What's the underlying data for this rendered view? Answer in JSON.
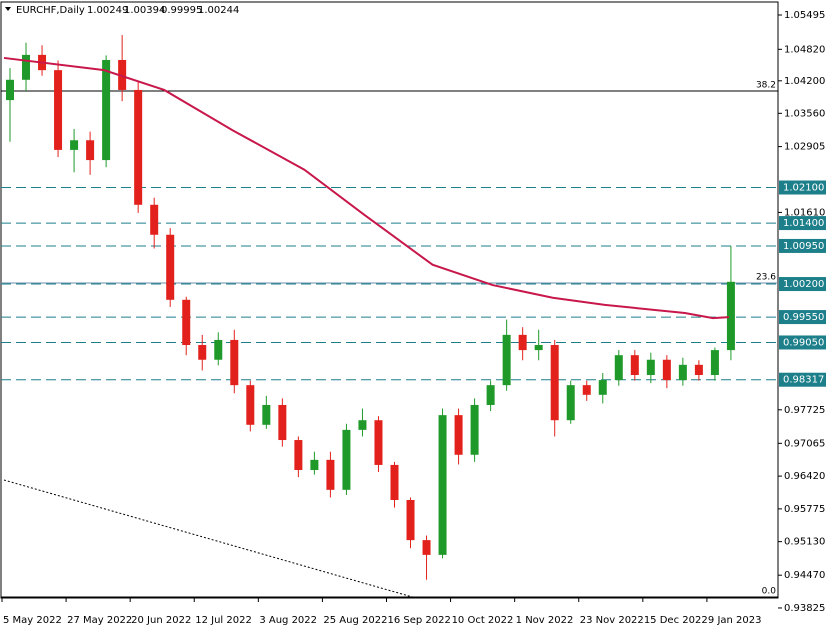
{
  "chart_data": {
    "type": "candlestick",
    "symbol": "EURCHF,Daily",
    "quote": [
      1.00249,
      1.00394,
      0.99995,
      1.00244
    ],
    "xlim": [
      0,
      194
    ],
    "ylim": [
      0.94021,
      1.05751
    ],
    "yticks": [
      1.05495,
      {
        "value": 1.0482,
        "label": "1.04820"
      },
      {
        "value": 1.042,
        "label": "1.04200"
      },
      {
        "value": 1.0356,
        "label": "1.03560"
      },
      1.02905,
      {
        "value": 1.0161,
        "label": "1.01610"
      },
      0.97725,
      0.97065,
      {
        "value": 0.9642,
        "label": "0.96420"
      },
      0.95775,
      {
        "value": 0.9513,
        "label": "0.95130"
      },
      {
        "value": 0.9447,
        "label": "0.94470"
      },
      0.93825
    ],
    "xticks": [
      {
        "value": 0,
        "label": "5 May 2022"
      },
      {
        "value": 16,
        "label": "27 May 2022"
      },
      {
        "value": 32,
        "label": "20 Jun 2022"
      },
      {
        "value": 48,
        "label": "12 Jul 2022"
      },
      {
        "value": 64,
        "label": "3 Aug 2022"
      },
      {
        "value": 80,
        "label": "25 Aug 2022"
      },
      {
        "value": 96,
        "label": "16 Sep 2022"
      },
      {
        "value": 112,
        "label": "10 Oct 2022"
      },
      {
        "value": 128,
        "label": "1 Nov 2022"
      },
      {
        "value": 144,
        "label": "23 Nov 2022"
      },
      {
        "value": 160,
        "label": "15 Dec 2022"
      },
      {
        "value": 176,
        "label": "9 Jan 2023"
      }
    ],
    "up_color": "#1f9a2a",
    "down_color": "#e3211c",
    "x": [
      0,
      4,
      8,
      12,
      16,
      20,
      24,
      28,
      32,
      36,
      40,
      44,
      48,
      52,
      56,
      60,
      64,
      68,
      72,
      76,
      80,
      84,
      88,
      92,
      96,
      100,
      104,
      108,
      112,
      116,
      120,
      124,
      128,
      132,
      136,
      140,
      144,
      148,
      152,
      156,
      160,
      164,
      168,
      172,
      176,
      180
    ],
    "open": [
      1.0382,
      1.0422,
      1.0471,
      1.0441,
      1.0284,
      1.0303,
      1.0264,
      1.0461,
      1.0402,
      1.0176,
      1.0117,
      0.9989,
      0.99,
      0.9871,
      0.991,
      0.9821,
      0.9743,
      0.9782,
      0.9713,
      0.9654,
      0.9674,
      0.9615,
      0.9733,
      0.9752,
      0.9664,
      0.9595,
      0.9516,
      0.9487,
      0.9762,
      0.9684,
      0.9782,
      0.9821,
      0.992,
      0.989,
      0.99,
      0.9752,
      0.9821,
      0.9802,
      0.9831,
      0.988,
      0.9841,
      0.9871,
      0.9831,
      0.9861,
      0.9841,
      0.989
    ],
    "high": [
      1.0445,
      1.0495,
      1.049,
      1.046,
      1.0325,
      1.032,
      1.047,
      1.051,
      1.042,
      1.019,
      1.013,
      0.9995,
      0.992,
      0.9925,
      0.993,
      0.983,
      0.98,
      0.9795,
      0.972,
      0.969,
      0.969,
      0.9745,
      0.9775,
      0.976,
      0.967,
      0.96,
      0.9525,
      0.9775,
      0.9775,
      0.9795,
      0.983,
      0.995,
      0.9935,
      0.993,
      0.991,
      0.983,
      0.983,
      0.9845,
      0.989,
      0.989,
      0.9885,
      0.988,
      0.9875,
      0.987,
      0.9895,
      1.0095
    ],
    "low": [
      1.03,
      1.04,
      1.043,
      1.027,
      1.024,
      1.0235,
      1.025,
      1.038,
      1.016,
      1.009,
      0.9975,
      0.988,
      0.985,
      0.986,
      0.9805,
      0.973,
      0.9735,
      0.97,
      0.964,
      0.9645,
      0.96,
      0.9605,
      0.972,
      0.965,
      0.958,
      0.95,
      0.9438,
      0.948,
      0.9665,
      0.967,
      0.977,
      0.981,
      0.987,
      0.987,
      0.972,
      0.9745,
      0.979,
      0.9785,
      0.982,
      0.983,
      0.9825,
      0.9815,
      0.982,
      0.983,
      0.983,
      0.987
    ],
    "close": [
      1.0422,
      1.0471,
      1.0441,
      1.0284,
      1.0303,
      1.0264,
      1.0461,
      1.0402,
      1.0176,
      1.0117,
      0.9989,
      0.99,
      0.9871,
      0.991,
      0.9821,
      0.9743,
      0.9782,
      0.9713,
      0.9654,
      0.9674,
      0.9615,
      0.9733,
      0.9752,
      0.9664,
      0.9595,
      0.9516,
      0.9487,
      0.9762,
      0.9684,
      0.9782,
      0.9821,
      0.992,
      0.989,
      0.99,
      0.9752,
      0.9821,
      0.9802,
      0.9831,
      0.988,
      0.9841,
      0.9871,
      0.9831,
      0.9861,
      0.9841,
      0.989,
      1.00244
    ],
    "moving_average": {
      "color": "#c8174a",
      "x": [
        0,
        25,
        40,
        57,
        75,
        90,
        107,
        122,
        137,
        150,
        170,
        177,
        181
      ],
      "values": [
        1.0465,
        1.0441,
        1.0402,
        1.0323,
        1.0245,
        1.0156,
        1.0058,
        1.0018,
        0.9993,
        0.9979,
        0.9963,
        0.9953,
        0.9955
      ]
    },
    "levels": {
      "color": "#1c7f8a",
      "values": [
        1.021,
        1.014,
        1.0095,
        1.002,
        0.9955,
        0.9905,
        0.98317
      ],
      "value_labels": [
        "1.02100",
        "1.01400",
        "1.00950",
        "1.00200",
        "0.99550",
        "0.99050",
        "0.98317"
      ]
    },
    "fib_levels": [
      {
        "label": "38.2",
        "price": 1.04
      },
      {
        "label": "23.6",
        "price": 1.0022
      },
      {
        "label": "0.0",
        "price": 0.9404
      }
    ],
    "trendline": {
      "x": [
        0,
        102
      ],
      "values": [
        0.96343,
        0.9404
      ]
    }
  }
}
